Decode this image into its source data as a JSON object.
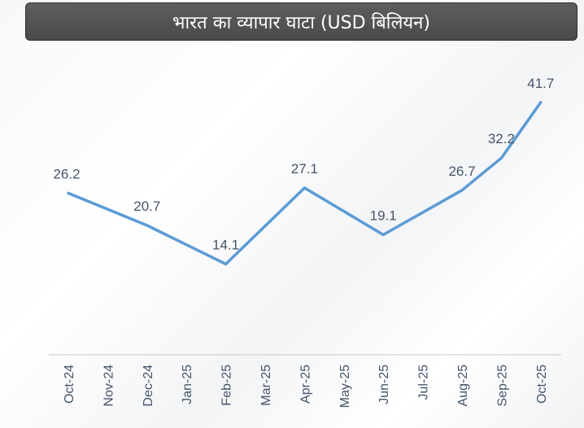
{
  "chart_data": {
    "type": "line",
    "title": "भारत का व्यापार घाटा (USD बिलियन)",
    "categories": [
      "Oct-24",
      "Nov-24",
      "Dec-24",
      "Jan-25",
      "Feb-25",
      "Mar-25",
      "Apr-25",
      "May-25",
      "Jun-25",
      "Jul-25",
      "Aug-25",
      "Sep-25",
      "Oct-25"
    ],
    "points": [
      {
        "category": "Oct-24",
        "value": 26.2,
        "label": "26.2"
      },
      {
        "category": "Dec-24",
        "value": 20.7,
        "label": "20.7"
      },
      {
        "category": "Feb-25",
        "value": 14.1,
        "label": "14.1"
      },
      {
        "category": "Apr-25",
        "value": 27.1,
        "label": "27.1"
      },
      {
        "category": "Jun-25",
        "value": 19.1,
        "label": "19.1"
      },
      {
        "category": "Aug-25",
        "value": 26.7,
        "label": "26.7"
      },
      {
        "category": "Sep-25",
        "value": 32.2,
        "label": "32.2"
      },
      {
        "category": "Oct-25",
        "value": 41.7,
        "label": "41.7"
      }
    ],
    "ylim": [
      0,
      47
    ],
    "xlabel": "",
    "ylabel": "",
    "grid": false,
    "line_color": "#5b9bd5",
    "text_color": "#44546a",
    "axis_color": "#d9d9d9"
  }
}
